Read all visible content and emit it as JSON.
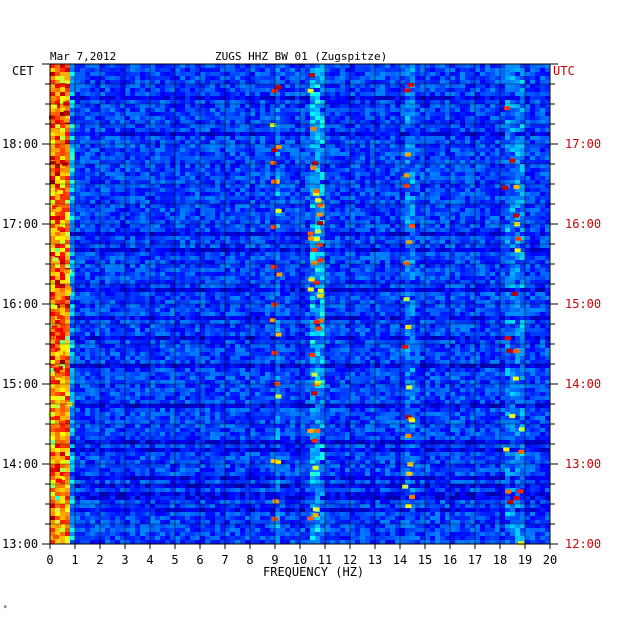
{
  "header": {
    "date": "Mar 7,2012",
    "station": "ZUGS HHZ BW 01 (Zugspitze)"
  },
  "footer_mark": "*",
  "colors": {
    "background": "#ffffff",
    "axis": "#000000",
    "utc_labels": "#cc0000",
    "grid": "#000000",
    "spectrogram_low": "#000080",
    "spectrogram_mid": "#0040ff",
    "spectrogram_high": "#00ffff",
    "spectrogram_peak": "#ff0000"
  },
  "chart_data": {
    "type": "heatmap",
    "title": "ZUGS HHZ BW 01 (Zugspitze)",
    "date": "Mar 7,2012",
    "xlabel": "FREQUENCY (HZ)",
    "xlim": [
      0,
      20
    ],
    "x_ticks": [
      "0",
      "1",
      "2",
      "3",
      "4",
      "5",
      "6",
      "7",
      "8",
      "9",
      "10",
      "11",
      "12",
      "13",
      "14",
      "15",
      "16",
      "17",
      "18",
      "19",
      "20"
    ],
    "left_axis": {
      "label": "CET",
      "ticks": [
        {
          "label": "18:00",
          "hour": 18
        },
        {
          "label": "17:00",
          "hour": 17
        },
        {
          "label": "16:00",
          "hour": 16
        },
        {
          "label": "15:00",
          "hour": 15
        },
        {
          "label": "14:00",
          "hour": 14
        },
        {
          "label": "13:00",
          "hour": 13
        }
      ]
    },
    "right_axis": {
      "label": "UTC",
      "color": "#cc0000",
      "ticks": [
        {
          "label": "17:00",
          "hour": 17
        },
        {
          "label": "16:00",
          "hour": 16
        },
        {
          "label": "15:00",
          "hour": 15
        },
        {
          "label": "14:00",
          "hour": 14
        },
        {
          "label": "13:00",
          "hour": 13
        },
        {
          "label": "12:00",
          "hour": 12
        }
      ]
    },
    "time_range_cet": [
      "13:00",
      "19:00"
    ],
    "grid": true,
    "colormap": "jet",
    "features": [
      {
        "name": "low-frequency energy",
        "freq_hz": [
          0,
          0.8
        ],
        "intensity": "high"
      },
      {
        "name": "band near 9 Hz",
        "freq_hz": [
          8.9,
          9.2
        ],
        "intensity": "medium"
      },
      {
        "name": "band near 10.7 Hz",
        "freq_hz": [
          10.4,
          10.9
        ],
        "intensity": "high"
      },
      {
        "name": "band near 14.3 Hz",
        "freq_hz": [
          14.2,
          14.5
        ],
        "intensity": "medium"
      },
      {
        "name": "band near 18.5 Hz",
        "freq_hz": [
          18.2,
          18.9
        ],
        "intensity": "medium"
      }
    ]
  }
}
